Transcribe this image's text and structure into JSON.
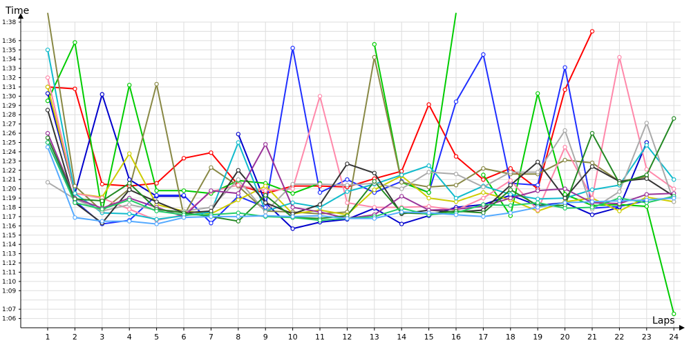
{
  "chart_data": {
    "type": "line",
    "ylabel": "Time",
    "xlabel": "Laps",
    "ylim": [
      "1:05",
      "1:38"
    ],
    "grid": true,
    "y_tick_labels": [
      "1:06",
      "1:07",
      "1:09",
      "1:10",
      "1:11",
      "1:12",
      "1:13",
      "1:14",
      "1:15",
      "1:16",
      "1:17",
      "1:18",
      "1:19",
      "1:20",
      "1:21",
      "1:22",
      "1:23",
      "1:24",
      "1:25",
      "1:26",
      "1:27",
      "1:28",
      "1:29",
      "1:30",
      "1:31",
      "1:32",
      "1:33",
      "1:34",
      "1:35",
      "1:36",
      "1:38"
    ],
    "x": [
      1,
      2,
      3,
      4,
      5,
      6,
      7,
      8,
      9,
      10,
      11,
      12,
      13,
      14,
      15,
      16,
      17,
      18,
      19,
      20,
      21,
      22,
      23,
      24
    ],
    "series": [
      {
        "color": "#ff0000",
        "values": [
          91.0,
          90.8,
          80.5,
          80.3,
          80.6,
          83.3,
          83.9,
          80.4,
          79.5,
          80.3,
          80.3,
          80.2,
          81.1,
          81.9,
          89.1,
          83.5,
          81.0,
          82.2,
          80.0,
          90.7,
          97.0,
          null,
          null,
          null
        ]
      },
      {
        "color": "#0000cc",
        "values": [
          90.3,
          79.5,
          90.2,
          81.0,
          79.2,
          79.2,
          null,
          null,
          null,
          null,
          null,
          null,
          null,
          null,
          null,
          null,
          null,
          null,
          null,
          null,
          null,
          null,
          null,
          null
        ]
      },
      {
        "color": "#0000cc",
        "values": [
          null,
          null,
          null,
          null,
          null,
          null,
          null,
          85.9,
          78.5,
          75.7,
          76.4,
          76.7,
          77.9,
          76.2,
          77.1,
          78.0,
          78.3,
          79.3,
          78.2,
          78.5,
          77.2,
          78.0,
          85.0,
          null
        ]
      },
      {
        "color": "#1f2fff",
        "values": [
          85.0,
          78.7,
          76.2,
          76.6,
          79.3,
          79.3,
          76.3,
          79.2,
          78.0,
          95.2,
          79.6,
          81.0,
          79.6,
          80.8,
          79.6,
          89.4,
          94.5,
          80.6,
          80.4,
          93.1,
          77.9,
          78.1,
          78.7,
          null
        ]
      },
      {
        "color": "#00cc00",
        "values": [
          89.5,
          95.8,
          77.5,
          91.2,
          79.8,
          79.8,
          79.5,
          80.9,
          80.6,
          79.5,
          80.6,
          null,
          95.6,
          80.7,
          79.6,
          99.0,
          null,
          null,
          null,
          null,
          null,
          null,
          null,
          null
        ]
      },
      {
        "color": "#00cc00",
        "values": [
          null,
          null,
          null,
          null,
          null,
          null,
          null,
          null,
          null,
          null,
          null,
          null,
          null,
          null,
          null,
          null,
          81.5,
          77.1,
          90.3,
          79.4,
          78.2,
          78.3,
          78.1,
          66.5
        ]
      },
      {
        "color": "#888844",
        "values": [
          99.0,
          80.3,
          77.6,
          80.0,
          91.3,
          77.1,
          82.3,
          80.3,
          77.6,
          77.5,
          77.3,
          77.5,
          94.2,
          80.7,
          80.2,
          80.4,
          82.2,
          81.6,
          81.6,
          83.1,
          82.8,
          80.8,
          81.3,
          null
        ]
      },
      {
        "color": "#cccc00",
        "values": [
          91.0,
          79.5,
          79.1,
          83.8,
          78.3,
          77.6,
          77.3,
          78.8,
          80.3,
          77.3,
          77.7,
          77.2,
          79.9,
          81.4,
          79.0,
          78.6,
          79.6,
          78.8,
          77.6,
          78.6,
          79.0,
          77.6,
          79.1,
          78.6
        ]
      },
      {
        "color": "#ff88aa",
        "values": [
          92.0,
          79.5,
          79.0,
          77.8,
          76.6,
          77.2,
          79.7,
          80.4,
          79.8,
          80.0,
          90.0,
          78.5,
          78.0,
          78.0,
          78.1,
          77.7,
          79.0,
          80.9,
          77.7,
          84.5,
          79.0,
          94.2,
          82.1,
          80.0
        ]
      },
      {
        "color": "#11bbcc",
        "values": [
          95.0,
          79.5,
          77.4,
          77.3,
          76.7,
          77.1,
          77.5,
          85.0,
          77.6,
          78.5,
          78.0,
          79.7,
          80.5,
          81.5,
          82.5,
          79.0,
          80.3,
          79.4,
          78.9,
          79.0,
          79.9,
          80.4,
          84.7,
          81.0
        ]
      },
      {
        "color": "#aaaaaa",
        "values": [
          80.7,
          78.9,
          77.6,
          78.3,
          77.7,
          77.6,
          78.0,
          81.0,
          77.5,
          80.5,
          80.5,
          80.4,
          80.6,
          80.0,
          81.8,
          81.6,
          80.2,
          81.8,
          81.8,
          86.3,
          77.8,
          79.7,
          87.1,
          78.6
        ]
      },
      {
        "color": "#333333",
        "values": [
          88.5,
          78.5,
          76.3,
          79.9,
          78.6,
          77.4,
          77.6,
          82.0,
          78.5,
          77.3,
          78.3,
          82.7,
          81.7,
          77.3,
          77.7,
          77.5,
          77.7,
          80.4,
          82.9,
          79.0,
          82.4,
          80.8,
          81.1,
          79.2
        ]
      },
      {
        "color": "#993399",
        "values": [
          86.0,
          79.0,
          77.9,
          79.0,
          78.0,
          77.0,
          79.8,
          79.5,
          84.8,
          78.0,
          77.5,
          76.8,
          77.2,
          79.2,
          77.7,
          77.8,
          78.1,
          79.0,
          79.8,
          80.0,
          78.5,
          78.4,
          79.4,
          79.5
        ]
      },
      {
        "color": "#228822",
        "values": [
          85.5,
          78.9,
          78.7,
          80.6,
          77.8,
          77.4,
          77.0,
          76.5,
          79.3,
          76.9,
          76.8,
          77.1,
          80.8,
          77.4,
          77.3,
          77.6,
          77.4,
          79.9,
          78.2,
          78.2,
          86.0,
          80.6,
          81.5,
          87.6
        ]
      },
      {
        "color": "#22cc66",
        "values": [
          85.0,
          78.5,
          77.8,
          78.8,
          77.6,
          77.2,
          77.2,
          77.4,
          77.0,
          76.9,
          76.6,
          76.8,
          77.0,
          77.9,
          77.2,
          77.4,
          78.3,
          78.2,
          78.5,
          77.9,
          78.0,
          79.0,
          78.5,
          79.2
        ]
      },
      {
        "color": "#55aaff",
        "values": [
          84.5,
          76.9,
          76.5,
          76.5,
          76.2,
          76.9,
          77.0,
          77.0,
          77.1,
          77.0,
          77.1,
          76.8,
          76.8,
          77.5,
          77.4,
          77.2,
          77.0,
          77.4,
          78.0,
          78.5,
          78.6,
          78.7,
          78.8,
          79.0
        ]
      }
    ]
  }
}
